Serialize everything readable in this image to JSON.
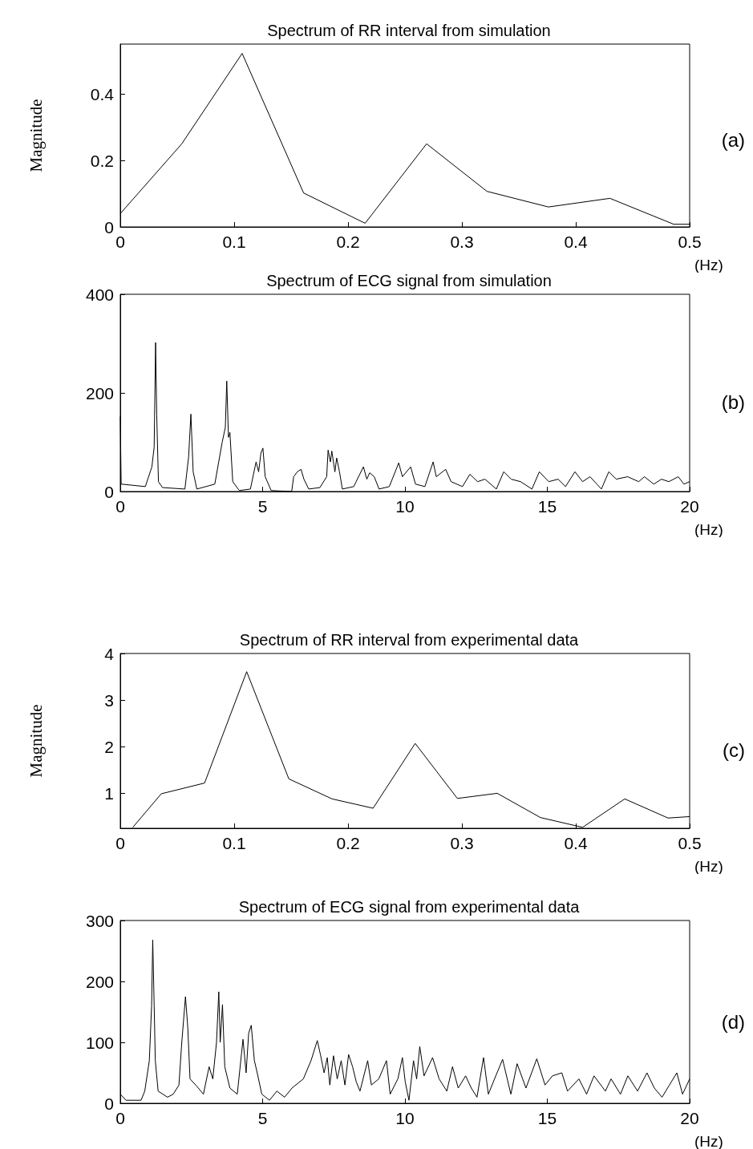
{
  "chart_data": [
    {
      "type": "line",
      "title": "Spectrum of RR interval from simulation",
      "xlabel": "(Hz)",
      "ylabel": "Magnitude",
      "annotations": [
        "(a)"
      ],
      "marker": "none",
      "grid": false,
      "color": "#000000",
      "x": [
        0,
        0.054,
        0.107,
        0.161,
        0.215,
        0.269,
        0.322,
        0.376,
        0.43,
        0.486,
        0.5
      ],
      "values": [
        0.04,
        0.25,
        0.522,
        0.102,
        0.011,
        0.25,
        0.107,
        0.06,
        0.086,
        0.008,
        0.008
      ],
      "xlim": [
        0,
        0.5
      ],
      "xticks": [
        0,
        0.1,
        0.2,
        0.3,
        0.4,
        0.5
      ],
      "ylim": [
        0,
        0.55
      ],
      "yticks": [
        0,
        0.2,
        0.4
      ]
    },
    {
      "type": "line",
      "title": "Spectrum of ECG signal from simulation",
      "xlabel": "(Hz)",
      "annotations": [
        "(b)"
      ],
      "marker": "none",
      "grid": false,
      "color": "#000000",
      "x": [
        0,
        0.03,
        0.88,
        1.11,
        1.19,
        1.24,
        1.28,
        1.34,
        1.48,
        2.27,
        2.4,
        2.48,
        2.56,
        2.69,
        3.32,
        3.58,
        3.69,
        3.74,
        3.8,
        3.85,
        3.95,
        4.18,
        4.57,
        4.77,
        4.86,
        4.94,
        5.01,
        5.09,
        5.3,
        6.02,
        6.09,
        6.22,
        6.35,
        6.45,
        6.62,
        7.01,
        7.25,
        7.3,
        7.38,
        7.43,
        7.54,
        7.6,
        7.7,
        7.8,
        8.2,
        8.54,
        8.66,
        8.76,
        8.92,
        9.09,
        9.45,
        9.78,
        9.91,
        10.2,
        10.37,
        10.7,
        10.99,
        11.1,
        11.43,
        11.62,
        12.02,
        12.28,
        12.55,
        12.81,
        13.21,
        13.47,
        13.73,
        14.06,
        14.46,
        14.72,
        15.05,
        15.38,
        15.64,
        15.97,
        16.24,
        16.5,
        16.9,
        17.16,
        17.42,
        17.82,
        18.21,
        18.41,
        18.74,
        19.01,
        19.27,
        19.6,
        19.8,
        20
      ],
      "values": [
        152,
        15,
        10,
        50,
        90,
        302,
        155,
        20,
        8,
        5,
        70,
        157,
        40,
        5,
        15,
        100,
        130,
        224,
        110,
        120,
        20,
        2,
        5,
        60,
        40,
        78,
        88,
        30,
        2,
        0,
        30,
        40,
        45,
        25,
        5,
        8,
        30,
        84,
        60,
        82,
        40,
        68,
        40,
        5,
        10,
        50,
        25,
        38,
        30,
        5,
        10,
        58,
        30,
        50,
        15,
        10,
        60,
        30,
        45,
        20,
        10,
        35,
        20,
        25,
        5,
        40,
        25,
        20,
        5,
        40,
        20,
        25,
        10,
        40,
        20,
        30,
        5,
        40,
        25,
        30,
        20,
        30,
        15,
        25,
        20,
        30,
        15,
        20
      ],
      "xlim": [
        0,
        20
      ],
      "xticks": [
        0,
        5,
        10,
        15,
        20
      ],
      "ylim": [
        0,
        400
      ],
      "yticks": [
        0,
        200,
        400
      ]
    },
    {
      "type": "line",
      "title": "Spectrum of RR interval from experimental data",
      "xlabel": "(Hz)",
      "ylabel": "Magnitude",
      "annotations": [
        "(c)"
      ],
      "marker": "none",
      "grid": false,
      "color": "#000000",
      "x": [
        0.011,
        0.036,
        0.074,
        0.111,
        0.148,
        0.186,
        0.222,
        0.259,
        0.296,
        0.331,
        0.369,
        0.406,
        0.443,
        0.481,
        0.5
      ],
      "values": [
        0.27,
        0.99,
        1.22,
        3.61,
        1.31,
        0.88,
        0.68,
        2.07,
        0.89,
        1.0,
        0.48,
        0.27,
        0.88,
        0.47,
        0.5
      ],
      "xlim": [
        0,
        0.5
      ],
      "xticks": [
        0,
        0.1,
        0.2,
        0.3,
        0.4,
        0.5
      ],
      "ylim": [
        0.25,
        4
      ],
      "yticks": [
        1,
        2,
        3,
        4
      ]
    },
    {
      "type": "line",
      "title": "Spectrum of ECG signal from experimental data",
      "xlabel": "(Hz)",
      "annotations": [
        "(d)"
      ],
      "marker": "none",
      "grid": false,
      "color": "#000000",
      "x": [
        0,
        0.2,
        0.73,
        0.86,
        1.02,
        1.1,
        1.14,
        1.19,
        1.23,
        1.33,
        1.66,
        1.86,
        2.06,
        2.16,
        2.29,
        2.37,
        2.45,
        2.65,
        2.92,
        3.12,
        3.25,
        3.38,
        3.46,
        3.51,
        3.59,
        3.67,
        3.85,
        4.11,
        4.31,
        4.42,
        4.51,
        4.6,
        4.71,
        4.81,
        4.97,
        5.24,
        5.5,
        5.77,
        6.03,
        6.43,
        6.7,
        6.92,
        7.03,
        7.16,
        7.27,
        7.36,
        7.49,
        7.62,
        7.76,
        7.89,
        8.02,
        8.16,
        8.29,
        8.42,
        8.69,
        8.82,
        9.08,
        9.35,
        9.48,
        9.75,
        9.91,
        10.01,
        10.14,
        10.3,
        10.41,
        10.52,
        10.67,
        10.97,
        11.2,
        11.47,
        11.67,
        11.87,
        12.13,
        12.33,
        12.53,
        12.76,
        12.93,
        13.19,
        13.43,
        13.72,
        13.94,
        14.25,
        14.63,
        14.92,
        15.18,
        15.51,
        15.71,
        16.11,
        16.38,
        16.64,
        17.04,
        17.24,
        17.57,
        17.83,
        18.17,
        18.5,
        18.76,
        19.03,
        19.29,
        19.55,
        19.75,
        20
      ],
      "values": [
        15,
        5,
        5,
        20,
        70,
        160,
        268,
        160,
        70,
        20,
        10,
        15,
        30,
        100,
        175,
        125,
        40,
        30,
        15,
        60,
        40,
        100,
        183,
        100,
        162,
        60,
        25,
        15,
        105,
        50,
        115,
        128,
        70,
        50,
        15,
        5,
        20,
        10,
        25,
        40,
        70,
        103,
        80,
        50,
        75,
        30,
        78,
        40,
        70,
        30,
        80,
        60,
        35,
        20,
        70,
        30,
        40,
        70,
        15,
        40,
        75,
        35,
        5,
        70,
        40,
        93,
        45,
        75,
        40,
        20,
        60,
        25,
        45,
        25,
        10,
        75,
        15,
        45,
        72,
        15,
        65,
        25,
        73,
        30,
        45,
        50,
        20,
        40,
        15,
        45,
        20,
        40,
        15,
        45,
        20,
        50,
        25,
        10,
        30,
        50,
        15,
        40
      ],
      "xlim": [
        0,
        20
      ],
      "xticks": [
        0,
        5,
        10,
        15,
        20
      ],
      "ylim": [
        0,
        300
      ],
      "yticks": [
        0,
        100,
        200,
        300
      ]
    }
  ]
}
